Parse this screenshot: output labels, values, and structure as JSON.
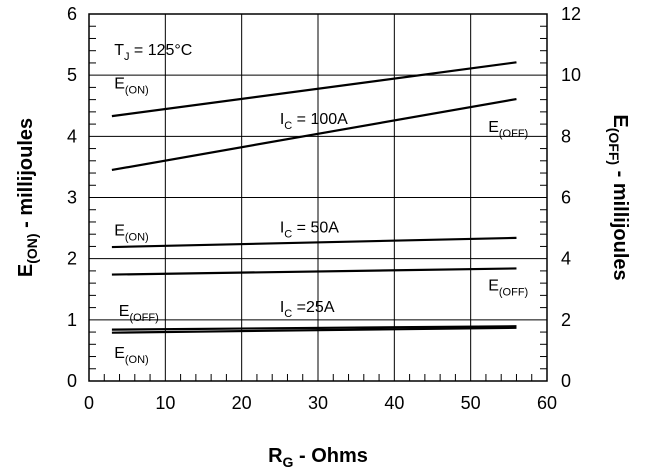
{
  "chart_data": {
    "type": "line",
    "xlabel": {
      "main": "R",
      "sub": "G",
      "rest": " - Ohms"
    },
    "ylabel_left": {
      "main": "E",
      "sub": "(ON)",
      "rest": " - millijoules"
    },
    "ylabel_right": {
      "main": "E",
      "sub": "(OFF)",
      "rest": " - millijoules"
    },
    "xlim": [
      0,
      60
    ],
    "ylim_left": [
      0,
      6
    ],
    "ylim_right": [
      0,
      12
    ],
    "x_ticks": [
      "0",
      "10",
      "20",
      "30",
      "40",
      "50",
      "60"
    ],
    "y_ticks_left": [
      "0",
      "1",
      "2",
      "3",
      "4",
      "5",
      "6"
    ],
    "y_ticks_right": [
      "0",
      "2",
      "4",
      "6",
      "8",
      "10",
      "12"
    ],
    "grid": true,
    "series": [
      {
        "axis": "left",
        "x": [
          3,
          56
        ],
        "y": [
          4.33,
          5.21
        ]
      },
      {
        "axis": "right",
        "x": [
          3,
          56
        ],
        "y": [
          6.9,
          9.22
        ]
      },
      {
        "axis": "left",
        "x": [
          3,
          56
        ],
        "y": [
          2.19,
          2.34
        ]
      },
      {
        "axis": "right",
        "x": [
          3,
          56
        ],
        "y": [
          3.48,
          3.68
        ]
      },
      {
        "axis": "left",
        "x": [
          3,
          56
        ],
        "y": [
          0.79,
          0.87
        ]
      },
      {
        "axis": "right",
        "x": [
          3,
          56
        ],
        "y": [
          1.68,
          1.79
        ]
      }
    ],
    "annotations": [
      {
        "main": "T",
        "sub": "J",
        "rest": " = 125°C",
        "x": 3.3,
        "y": 5.33
      },
      {
        "main": "E",
        "sub": "(ON)",
        "rest": "",
        "x": 3.3,
        "y": 4.78
      },
      {
        "main": "I",
        "sub": "C",
        "rest": " = 100A",
        "x": 25,
        "y": 4.2
      },
      {
        "main": "E",
        "sub": "(OFF)",
        "rest": "",
        "x": 52.3,
        "y": 4.07
      },
      {
        "main": "E",
        "sub": "(ON)",
        "rest": "",
        "x": 3.3,
        "y": 2.38
      },
      {
        "main": "I",
        "sub": "C",
        "rest": " = 50A",
        "x": 25,
        "y": 2.43
      },
      {
        "main": "E",
        "sub": "(OFF)",
        "rest": "",
        "x": 52.3,
        "y": 1.48
      },
      {
        "main": "E",
        "sub": "(OFF)",
        "rest": "",
        "x": 3.9,
        "y": 1.06
      },
      {
        "main": "I",
        "sub": "C",
        "rest": " =25A",
        "x": 25,
        "y": 1.13
      },
      {
        "main": "E",
        "sub": "(ON)",
        "rest": "",
        "x": 3.3,
        "y": 0.38
      }
    ]
  }
}
